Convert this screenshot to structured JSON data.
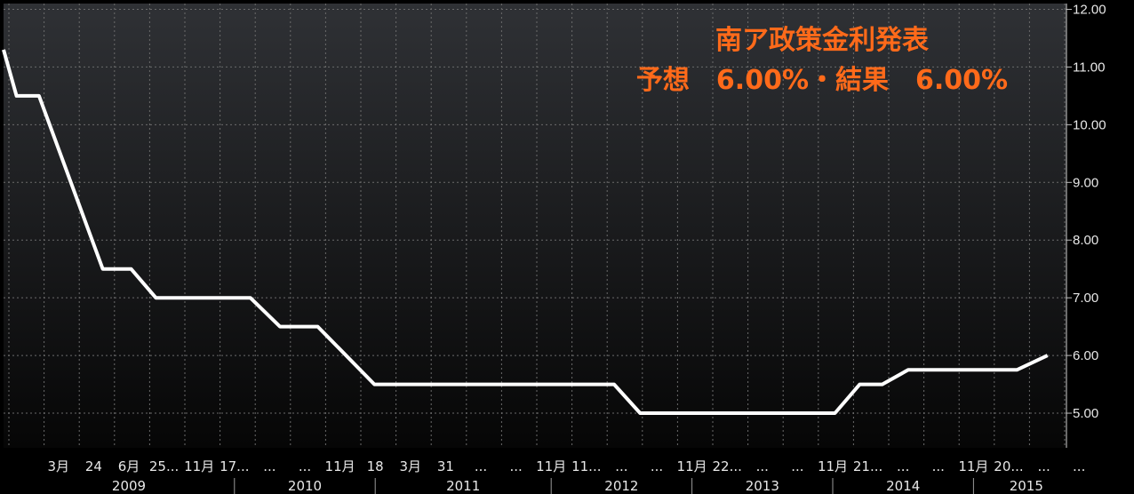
{
  "chart_data": {
    "type": "line",
    "title": "南ア政策金利発表",
    "subtitle": "予想　6.00%・結果　6.00%",
    "ylim": [
      4.4,
      12.1
    ],
    "yticks": [
      "12.00",
      "11.00",
      "10.00",
      "9.00",
      "8.00",
      "7.00",
      "6.00",
      "5.00"
    ],
    "xticks": [
      "3月",
      "24",
      "6月",
      "25...",
      "11月",
      "17...",
      "...",
      "...",
      "11月",
      "18",
      "3月",
      "31",
      "...",
      "...",
      "11月",
      "11...",
      "...",
      "...",
      "11月",
      "22...",
      "...",
      "...",
      "11月",
      "21...",
      "...",
      "...",
      "11月",
      "20...",
      "...",
      "..."
    ],
    "years": [
      "2009",
      "2010",
      "2011",
      "2012",
      "2013",
      "2014",
      "2015"
    ],
    "grid": true,
    "legend": "none",
    "line_color": "#ffffff",
    "series": [
      {
        "x": [
          0,
          1.1,
          3,
          8.4,
          10.8,
          12.9,
          20.9,
          23.4,
          26.6,
          31.4,
          51.7,
          53.9,
          70.4,
          72.5,
          74.4,
          76.6,
          85.8,
          88.4
        ],
        "values": [
          11.3,
          10.5,
          10.5,
          7.5,
          7.5,
          7.0,
          7.0,
          6.5,
          6.5,
          5.5,
          5.5,
          5.0,
          5.0,
          5.5,
          5.5,
          5.75,
          5.75,
          6.0
        ]
      }
    ]
  }
}
